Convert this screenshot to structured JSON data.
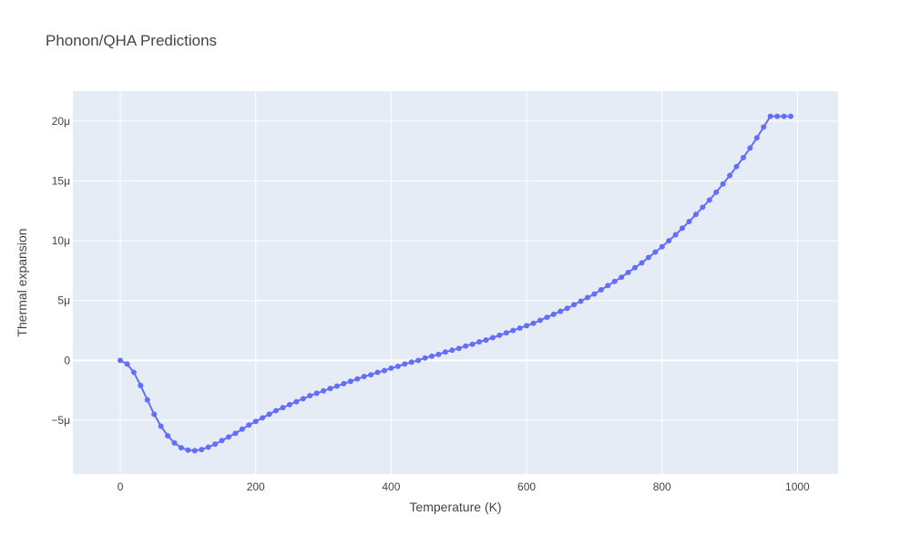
{
  "chart_data": {
    "type": "line",
    "title": "Phonon/QHA Predictions",
    "xlabel": "Temperature (K)",
    "ylabel": "Thermal expansion",
    "xlim": [
      -70,
      1060
    ],
    "ylim": [
      -9.5,
      22.5
    ],
    "x_ticks": [
      0,
      200,
      400,
      600,
      800,
      1000
    ],
    "x_tick_labels": [
      "0",
      "200",
      "400",
      "600",
      "800",
      "1000"
    ],
    "y_ticks": [
      -5,
      0,
      5,
      10,
      15,
      20
    ],
    "y_tick_labels": [
      "−5μ",
      "0",
      "5μ",
      "10μ",
      "15μ",
      "20μ"
    ],
    "y_unit_scale": "μ (1e-6)",
    "grid": true,
    "colors": {
      "plot_background": "#e5ecf6",
      "grid": "#ffffff",
      "series": "#636efa",
      "text": "#444444"
    },
    "series": [
      {
        "mode": "lines+markers",
        "x": [
          0,
          10,
          20,
          30,
          40,
          50,
          60,
          70,
          80,
          90,
          100,
          110,
          120,
          130,
          140,
          150,
          160,
          170,
          180,
          190,
          200,
          210,
          220,
          230,
          240,
          250,
          260,
          270,
          280,
          290,
          300,
          310,
          320,
          330,
          340,
          350,
          360,
          370,
          380,
          390,
          400,
          410,
          420,
          430,
          440,
          450,
          460,
          470,
          480,
          490,
          500,
          510,
          520,
          530,
          540,
          550,
          560,
          570,
          580,
          590,
          600,
          610,
          620,
          630,
          640,
          650,
          660,
          670,
          680,
          690,
          700,
          710,
          720,
          730,
          740,
          750,
          760,
          770,
          780,
          790,
          800,
          810,
          820,
          830,
          840,
          850,
          860,
          870,
          880,
          890,
          900,
          910,
          920,
          930,
          940,
          950,
          960,
          970,
          980,
          990
        ],
        "y": [
          0,
          -0.3,
          -1.0,
          -2.1,
          -3.3,
          -4.5,
          -5.5,
          -6.3,
          -6.9,
          -7.3,
          -7.5,
          -7.55,
          -7.45,
          -7.25,
          -7.0,
          -6.7,
          -6.4,
          -6.1,
          -5.75,
          -5.4,
          -5.1,
          -4.8,
          -4.5,
          -4.2,
          -3.95,
          -3.7,
          -3.45,
          -3.2,
          -2.95,
          -2.75,
          -2.55,
          -2.35,
          -2.15,
          -1.95,
          -1.75,
          -1.55,
          -1.35,
          -1.2,
          -1.0,
          -0.85,
          -0.65,
          -0.5,
          -0.3,
          -0.15,
          0.0,
          0.2,
          0.35,
          0.5,
          0.7,
          0.85,
          1.0,
          1.2,
          1.35,
          1.55,
          1.7,
          1.9,
          2.1,
          2.3,
          2.5,
          2.7,
          2.9,
          3.1,
          3.35,
          3.6,
          3.85,
          4.1,
          4.35,
          4.65,
          4.95,
          5.25,
          5.55,
          5.9,
          6.25,
          6.6,
          6.95,
          7.35,
          7.75,
          8.15,
          8.6,
          9.05,
          9.5,
          10.0,
          10.5,
          11.05,
          11.6,
          12.2,
          12.8,
          13.4,
          14.05,
          14.75,
          15.45,
          16.2,
          16.95,
          17.75,
          18.6,
          19.5,
          20.4,
          20.4,
          20.4,
          20.4
        ]
      }
    ]
  }
}
